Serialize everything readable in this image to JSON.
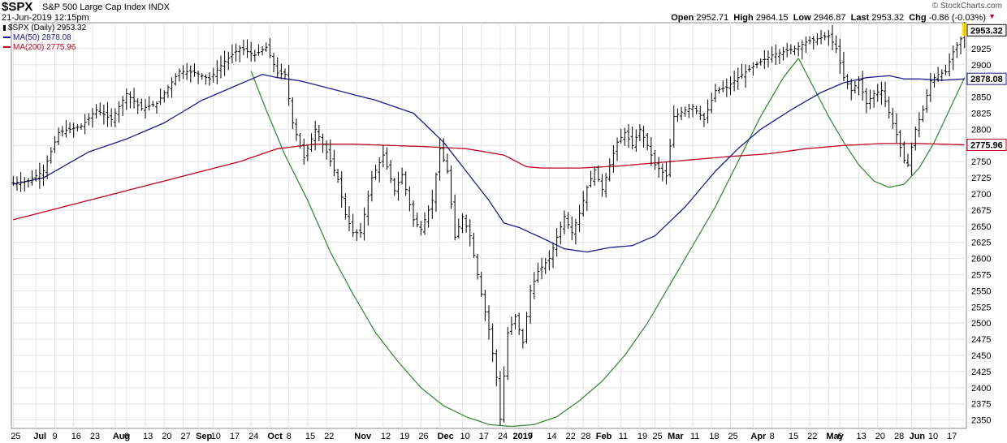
{
  "header": {
    "symbol": "$SPX",
    "name": "S&P 500 Large Cap Index",
    "exchange": "INDX",
    "date": "21-Jun-2019 12:15pm",
    "watermark": "© StockCharts.com",
    "open_label": "Open",
    "open": "2952.71",
    "high_label": "High",
    "high": "2964.15",
    "low_label": "Low",
    "low": "2946.87",
    "last_label": "Last",
    "last": "2953.32",
    "chg_label": "Chg",
    "chg": "-0.86 (-0.03%)",
    "chg_arrow": "▼"
  },
  "legend": {
    "price": "$SPX (Daily) 2953.32",
    "ma50": "MA(50) 2878.08",
    "ma200": "MA(200) 2775.96"
  },
  "colors": {
    "price": "#000000",
    "ma50": "#1c1c8c",
    "ma200": "#c00020",
    "cup": "#3c8c3c",
    "grid": "#e4e4e4",
    "last_bg": "#ffd700"
  },
  "chart_data": {
    "type": "ohlc",
    "title": "$SPX S&P 500 Large Cap Index INDX",
    "date_range": [
      "2019-06-21"
    ],
    "ylim": [
      2337,
      2965
    ],
    "y_ticks": [
      2350,
      2375,
      2400,
      2425,
      2450,
      2475,
      2500,
      2525,
      2550,
      2575,
      2600,
      2625,
      2650,
      2675,
      2700,
      2725,
      2750,
      2775,
      2800,
      2825,
      2850,
      2875,
      2900,
      2925
    ],
    "x_ticks": [
      {
        "label": "25",
        "x": 0
      },
      {
        "label": "Jul",
        "x": 6
      },
      {
        "label": "9",
        "x": 11
      },
      {
        "label": "16",
        "x": 16
      },
      {
        "label": "23",
        "x": 21
      },
      {
        "label": "Aug",
        "x": 27
      },
      {
        "label": "6",
        "x": 30
      },
      {
        "label": "13",
        "x": 35
      },
      {
        "label": "20",
        "x": 40
      },
      {
        "label": "27",
        "x": 45
      },
      {
        "label": "Sep",
        "x": 49
      },
      {
        "label": "10",
        "x": 53
      },
      {
        "label": "17",
        "x": 58
      },
      {
        "label": "24",
        "x": 63
      },
      {
        "label": "Oct",
        "x": 68
      },
      {
        "label": "8",
        "x": 73
      },
      {
        "label": "15",
        "x": 78
      },
      {
        "label": "22",
        "x": 83
      },
      {
        "label": "Nov",
        "x": 91
      },
      {
        "label": "12",
        "x": 98
      },
      {
        "label": "19",
        "x": 103
      },
      {
        "label": "26",
        "x": 108
      },
      {
        "label": "Dec",
        "x": 113
      },
      {
        "label": "10",
        "x": 119
      },
      {
        "label": "17",
        "x": 124
      },
      {
        "label": "24",
        "x": 129
      },
      {
        "label": "2019",
        "x": 133
      },
      {
        "label": "7",
        "x": 137
      },
      {
        "label": "14",
        "x": 142
      },
      {
        "label": "22",
        "x": 147
      },
      {
        "label": "28",
        "x": 151
      },
      {
        "label": "Feb",
        "x": 155
      },
      {
        "label": "11",
        "x": 161
      },
      {
        "label": "19",
        "x": 166
      },
      {
        "label": "25",
        "x": 170
      },
      {
        "label": "Mar",
        "x": 174
      },
      {
        "label": "11",
        "x": 180
      },
      {
        "label": "18",
        "x": 185
      },
      {
        "label": "25",
        "x": 190
      },
      {
        "label": "Apr",
        "x": 196
      },
      {
        "label": "8",
        "x": 201
      },
      {
        "label": "15",
        "x": 206
      },
      {
        "label": "22",
        "x": 211
      },
      {
        "label": "May",
        "x": 216
      },
      {
        "label": "6",
        "x": 219
      },
      {
        "label": "13",
        "x": 224
      },
      {
        "label": "20",
        "x": 229
      },
      {
        "label": "28",
        "x": 234
      },
      {
        "label": "Jun",
        "x": 238
      },
      {
        "label": "10",
        "x": 243
      },
      {
        "label": "17",
        "x": 248
      }
    ],
    "x_count": 253,
    "price_keypoints": [
      [
        0,
        2717
      ],
      [
        4,
        2720
      ],
      [
        8,
        2736
      ],
      [
        12,
        2795
      ],
      [
        18,
        2805
      ],
      [
        22,
        2830
      ],
      [
        26,
        2815
      ],
      [
        30,
        2855
      ],
      [
        34,
        2832
      ],
      [
        38,
        2840
      ],
      [
        44,
        2890
      ],
      [
        48,
        2888
      ],
      [
        52,
        2878
      ],
      [
        56,
        2905
      ],
      [
        60,
        2926
      ],
      [
        64,
        2915
      ],
      [
        67,
        2927
      ],
      [
        70,
        2887
      ],
      [
        72,
        2885
      ],
      [
        74,
        2810
      ],
      [
        77,
        2756
      ],
      [
        80,
        2800
      ],
      [
        83,
        2765
      ],
      [
        86,
        2722
      ],
      [
        88,
        2668
      ],
      [
        90,
        2640
      ],
      [
        92,
        2640
      ],
      [
        95,
        2725
      ],
      [
        98,
        2760
      ],
      [
        101,
        2705
      ],
      [
        103,
        2730
      ],
      [
        106,
        2660
      ],
      [
        108,
        2645
      ],
      [
        111,
        2690
      ],
      [
        113,
        2770
      ],
      [
        115,
        2735
      ],
      [
        117,
        2633
      ],
      [
        119,
        2665
      ],
      [
        121,
        2635
      ],
      [
        124,
        2545
      ],
      [
        126,
        2490
      ],
      [
        128,
        2416
      ],
      [
        129,
        2351
      ],
      [
        131,
        2485
      ],
      [
        133,
        2510
      ],
      [
        135,
        2470
      ],
      [
        137,
        2550
      ],
      [
        139,
        2580
      ],
      [
        142,
        2600
      ],
      [
        144,
        2633
      ],
      [
        146,
        2665
      ],
      [
        148,
        2640
      ],
      [
        150,
        2670
      ],
      [
        152,
        2710
      ],
      [
        154,
        2737
      ],
      [
        156,
        2707
      ],
      [
        158,
        2745
      ],
      [
        160,
        2780
      ],
      [
        162,
        2795
      ],
      [
        164,
        2775
      ],
      [
        166,
        2800
      ],
      [
        168,
        2775
      ],
      [
        170,
        2745
      ],
      [
        173,
        2728
      ],
      [
        175,
        2820
      ],
      [
        178,
        2830
      ],
      [
        180,
        2835
      ],
      [
        183,
        2815
      ],
      [
        186,
        2860
      ],
      [
        189,
        2865
      ],
      [
        192,
        2880
      ],
      [
        195,
        2893
      ],
      [
        198,
        2905
      ],
      [
        201,
        2915
      ],
      [
        204,
        2920
      ],
      [
        207,
        2925
      ],
      [
        210,
        2935
      ],
      [
        213,
        2940
      ],
      [
        216,
        2945
      ],
      [
        218,
        2925
      ],
      [
        220,
        2880
      ],
      [
        222,
        2860
      ],
      [
        224,
        2875
      ],
      [
        226,
        2840
      ],
      [
        228,
        2855
      ],
      [
        230,
        2860
      ],
      [
        232,
        2826
      ],
      [
        234,
        2792
      ],
      [
        236,
        2752
      ],
      [
        237,
        2745
      ],
      [
        239,
        2800
      ],
      [
        241,
        2830
      ],
      [
        243,
        2875
      ],
      [
        245,
        2885
      ],
      [
        247,
        2889
      ],
      [
        249,
        2920
      ],
      [
        251,
        2940
      ],
      [
        252,
        2953
      ]
    ],
    "ma50_keypoints": [
      [
        0,
        2715
      ],
      [
        8,
        2725
      ],
      [
        20,
        2765
      ],
      [
        30,
        2785
      ],
      [
        40,
        2810
      ],
      [
        50,
        2845
      ],
      [
        60,
        2870
      ],
      [
        66,
        2885
      ],
      [
        70,
        2880
      ],
      [
        76,
        2875
      ],
      [
        86,
        2860
      ],
      [
        96,
        2845
      ],
      [
        106,
        2825
      ],
      [
        114,
        2780
      ],
      [
        120,
        2735
      ],
      [
        126,
        2690
      ],
      [
        130,
        2655
      ],
      [
        134,
        2648
      ],
      [
        140,
        2632
      ],
      [
        146,
        2615
      ],
      [
        152,
        2610
      ],
      [
        158,
        2617
      ],
      [
        164,
        2620
      ],
      [
        170,
        2635
      ],
      [
        178,
        2680
      ],
      [
        186,
        2735
      ],
      [
        192,
        2770
      ],
      [
        198,
        2800
      ],
      [
        206,
        2830
      ],
      [
        214,
        2857
      ],
      [
        220,
        2872
      ],
      [
        226,
        2880
      ],
      [
        232,
        2883
      ],
      [
        236,
        2878
      ],
      [
        240,
        2878
      ],
      [
        246,
        2876
      ],
      [
        252,
        2878
      ]
    ],
    "ma200_keypoints": [
      [
        0,
        2660
      ],
      [
        20,
        2690
      ],
      [
        40,
        2720
      ],
      [
        60,
        2750
      ],
      [
        70,
        2770
      ],
      [
        80,
        2777
      ],
      [
        90,
        2777
      ],
      [
        100,
        2775
      ],
      [
        110,
        2773
      ],
      [
        120,
        2770
      ],
      [
        130,
        2760
      ],
      [
        136,
        2742
      ],
      [
        140,
        2740
      ],
      [
        150,
        2740
      ],
      [
        160,
        2743
      ],
      [
        170,
        2748
      ],
      [
        180,
        2753
      ],
      [
        190,
        2758
      ],
      [
        200,
        2762
      ],
      [
        210,
        2770
      ],
      [
        220,
        2775
      ],
      [
        230,
        2778
      ],
      [
        240,
        2778
      ],
      [
        252,
        2776
      ]
    ],
    "cup_keypoints": [
      [
        63,
        2890
      ],
      [
        67,
        2830
      ],
      [
        72,
        2760
      ],
      [
        78,
        2690
      ],
      [
        84,
        2610
      ],
      [
        90,
        2545
      ],
      [
        96,
        2485
      ],
      [
        102,
        2440
      ],
      [
        108,
        2400
      ],
      [
        114,
        2372
      ],
      [
        120,
        2355
      ],
      [
        126,
        2343
      ],
      [
        132,
        2340
      ],
      [
        138,
        2343
      ],
      [
        144,
        2355
      ],
      [
        150,
        2380
      ],
      [
        156,
        2410
      ],
      [
        162,
        2450
      ],
      [
        168,
        2500
      ],
      [
        174,
        2560
      ],
      [
        180,
        2620
      ],
      [
        186,
        2680
      ],
      [
        192,
        2750
      ],
      [
        198,
        2820
      ],
      [
        204,
        2880
      ],
      [
        208,
        2910
      ]
    ],
    "handle_keypoints": [
      [
        208,
        2910
      ],
      [
        212,
        2865
      ],
      [
        216,
        2820
      ],
      [
        220,
        2780
      ],
      [
        224,
        2745
      ],
      [
        228,
        2720
      ],
      [
        232,
        2710
      ],
      [
        236,
        2715
      ],
      [
        240,
        2740
      ],
      [
        244,
        2780
      ],
      [
        248,
        2830
      ],
      [
        252,
        2880
      ]
    ],
    "last_price": 2953.32,
    "ma50_last": 2878.08,
    "ma200_last": 2775.96,
    "last_label_text": "2953.32",
    "ma50_label_text": "2878.08",
    "ma200_label_text": "2775.96"
  }
}
